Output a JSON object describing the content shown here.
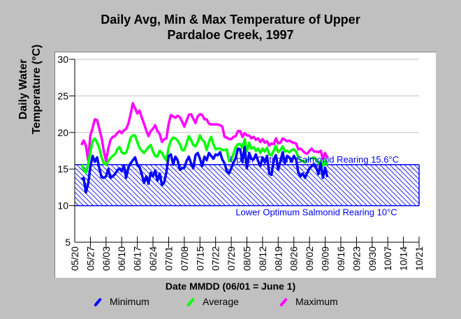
{
  "chart_data": {
    "type": "line",
    "title": "Daily Avg, Min & Max Temperature of Upper Pardaloe Creek, 1997",
    "title_lines": [
      "Daily Avg, Min & Max Temperature of Upper",
      "Pardaloe Creek, 1997"
    ],
    "xlabel": "Date MMDD (06/01 = June 1)",
    "ylabel_lines": [
      "Daily Water",
      "Temperature (°C)"
    ],
    "ylim": [
      5,
      30
    ],
    "yticks": [
      5,
      10,
      15,
      20,
      25,
      30
    ],
    "xtick_labels": [
      "05/20",
      "05/27",
      "06/03",
      "06/10",
      "06/17",
      "06/24",
      "07/01",
      "07/08",
      "07/15",
      "07/22",
      "07/29",
      "08/05",
      "08/12",
      "08/19",
      "08/26",
      "09/02",
      "09/09",
      "09/16",
      "09/23",
      "09/30",
      "10/07",
      "10/14",
      "10/21"
    ],
    "x_range_days": [
      0,
      154
    ],
    "x_start_date": "05/20",
    "grid": "horizontal",
    "legend_position": "bottom",
    "start_day_offset": 3,
    "series": [
      {
        "name": "Minimum",
        "color": "#0000ff",
        "values": [
          13.6,
          13.8,
          11.8,
          13.0,
          15.3,
          16.8,
          16.0,
          16.6,
          15.1,
          13.9,
          13.8,
          14.0,
          15.0,
          13.8,
          14.0,
          14.3,
          14.8,
          15.1,
          14.7,
          15.5,
          13.8,
          15.2,
          15.8,
          16.2,
          16.6,
          15.6,
          15.3,
          14.3,
          13.1,
          14.0,
          13.0,
          14.5,
          14.0,
          14.8,
          13.4,
          14.4,
          12.8,
          13.2,
          14.6,
          16.8,
          17.0,
          15.6,
          16.7,
          16.2,
          14.9,
          15.1,
          15.2,
          16.1,
          16.7,
          15.8,
          15.1,
          16.9,
          17.2,
          16.4,
          15.4,
          16.7,
          16.2,
          17.2,
          16.8,
          16.4,
          17.0,
          16.9,
          17.3,
          16.3,
          15.8,
          14.7,
          14.4,
          15.1,
          15.9,
          16.5,
          17.8,
          17.7,
          16.0,
          18.0,
          15.1,
          17.2,
          16.4,
          16.3,
          17.0,
          16.1,
          15.4,
          16.6,
          15.9,
          16.8,
          14.4,
          14.2,
          16.3,
          16.9,
          14.9,
          16.1,
          17.3,
          15.8,
          16.8,
          16.6,
          16.0,
          16.8,
          16.3,
          14.5,
          14.0,
          14.4,
          13.8,
          14.5,
          15.1,
          15.4,
          15.7,
          15.2,
          14.3,
          15.8,
          13.8,
          15.2,
          13.9
        ]
      },
      {
        "name": "Average",
        "color": "#00ff00",
        "values": [
          15.6,
          15.0,
          14.5,
          15.7,
          17.4,
          18.8,
          19.2,
          18.6,
          17.9,
          16.6,
          15.8,
          15.6,
          16.1,
          16.5,
          16.8,
          17.0,
          17.7,
          18.0,
          17.3,
          17.1,
          17.2,
          18.2,
          19.3,
          19.6,
          19.6,
          18.7,
          17.9,
          17.5,
          17.2,
          17.6,
          18.0,
          18.3,
          17.4,
          16.8,
          16.7,
          17.5,
          17.2,
          16.6,
          16.2,
          18.0,
          18.9,
          19.3,
          19.2,
          18.9,
          18.4,
          17.6,
          17.6,
          18.5,
          19.5,
          19.0,
          18.3,
          18.1,
          18.7,
          19.6,
          19.0,
          18.7,
          17.6,
          18.7,
          19.4,
          18.4,
          17.7,
          17.8,
          17.8,
          17.6,
          17.6,
          17.7,
          16.1,
          16.2,
          17.1,
          18.0,
          18.4,
          18.4,
          17.9,
          19.1,
          17.4,
          18.6,
          17.8,
          18.0,
          17.5,
          17.8,
          17.2,
          17.8,
          17.4,
          17.9,
          17.0,
          16.9,
          17.5,
          18.2,
          17.3,
          17.6,
          18.1,
          17.4,
          17.5,
          17.3,
          17.6,
          17.7,
          17.4,
          16.6,
          16.2,
          16.1,
          15.9,
          16.2,
          16.4,
          16.5,
          16.6,
          16.3,
          15.8,
          16.1,
          15.4,
          16.2,
          15.6
        ]
      },
      {
        "name": "Maximum",
        "color": "#ff00ff",
        "values": [
          18.3,
          18.9,
          18.2,
          16.2,
          19.6,
          20.6,
          21.8,
          21.7,
          20.5,
          19.3,
          17.5,
          16.1,
          17.8,
          19.0,
          19.4,
          19.5,
          19.9,
          20.2,
          19.9,
          20.3,
          20.5,
          21.2,
          22.5,
          24.0,
          23.3,
          22.6,
          23.0,
          22.0,
          21.2,
          20.3,
          19.5,
          20.2,
          20.5,
          21.0,
          20.2,
          19.8,
          18.7,
          19.1,
          19.2,
          21.2,
          22.4,
          22.2,
          22.0,
          22.3,
          22.1,
          21.5,
          20.8,
          21.6,
          22.4,
          22.5,
          21.9,
          21.3,
          22.2,
          22.5,
          22.4,
          21.8,
          21.8,
          21.2,
          21.1,
          21.1,
          21.1,
          21.1,
          21.0,
          20.8,
          19.4,
          19.3,
          19.1,
          19.1,
          19.4,
          19.5,
          20.2,
          20.2,
          19.4,
          19.9,
          19.6,
          19.6,
          19.2,
          19.4,
          19.0,
          19.2,
          18.7,
          19.1,
          18.6,
          18.8,
          18.2,
          18.5,
          18.4,
          19.2,
          18.5,
          18.6,
          19.2,
          19.0,
          18.8,
          18.9,
          18.7,
          18.6,
          18.5,
          17.7,
          17.8,
          17.5,
          17.2,
          17.1,
          17.5,
          17.8,
          17.4,
          17.4,
          17.3,
          17.5,
          16.4,
          17.2,
          16.5
        ]
      }
    ],
    "reference_band": {
      "upper": 15.6,
      "lower": 10,
      "upper_label": "Upper Optimum Salmonid Rearing 15.6°C",
      "lower_label": "Lower Optimum Salmonid Rearing 10°C",
      "color": "#0000ff"
    }
  },
  "legend": {
    "items": [
      {
        "label": "Minimum",
        "color": "#0000ff"
      },
      {
        "label": "Average",
        "color": "#00ff00"
      },
      {
        "label": "Maximum",
        "color": "#ff00ff"
      }
    ]
  }
}
